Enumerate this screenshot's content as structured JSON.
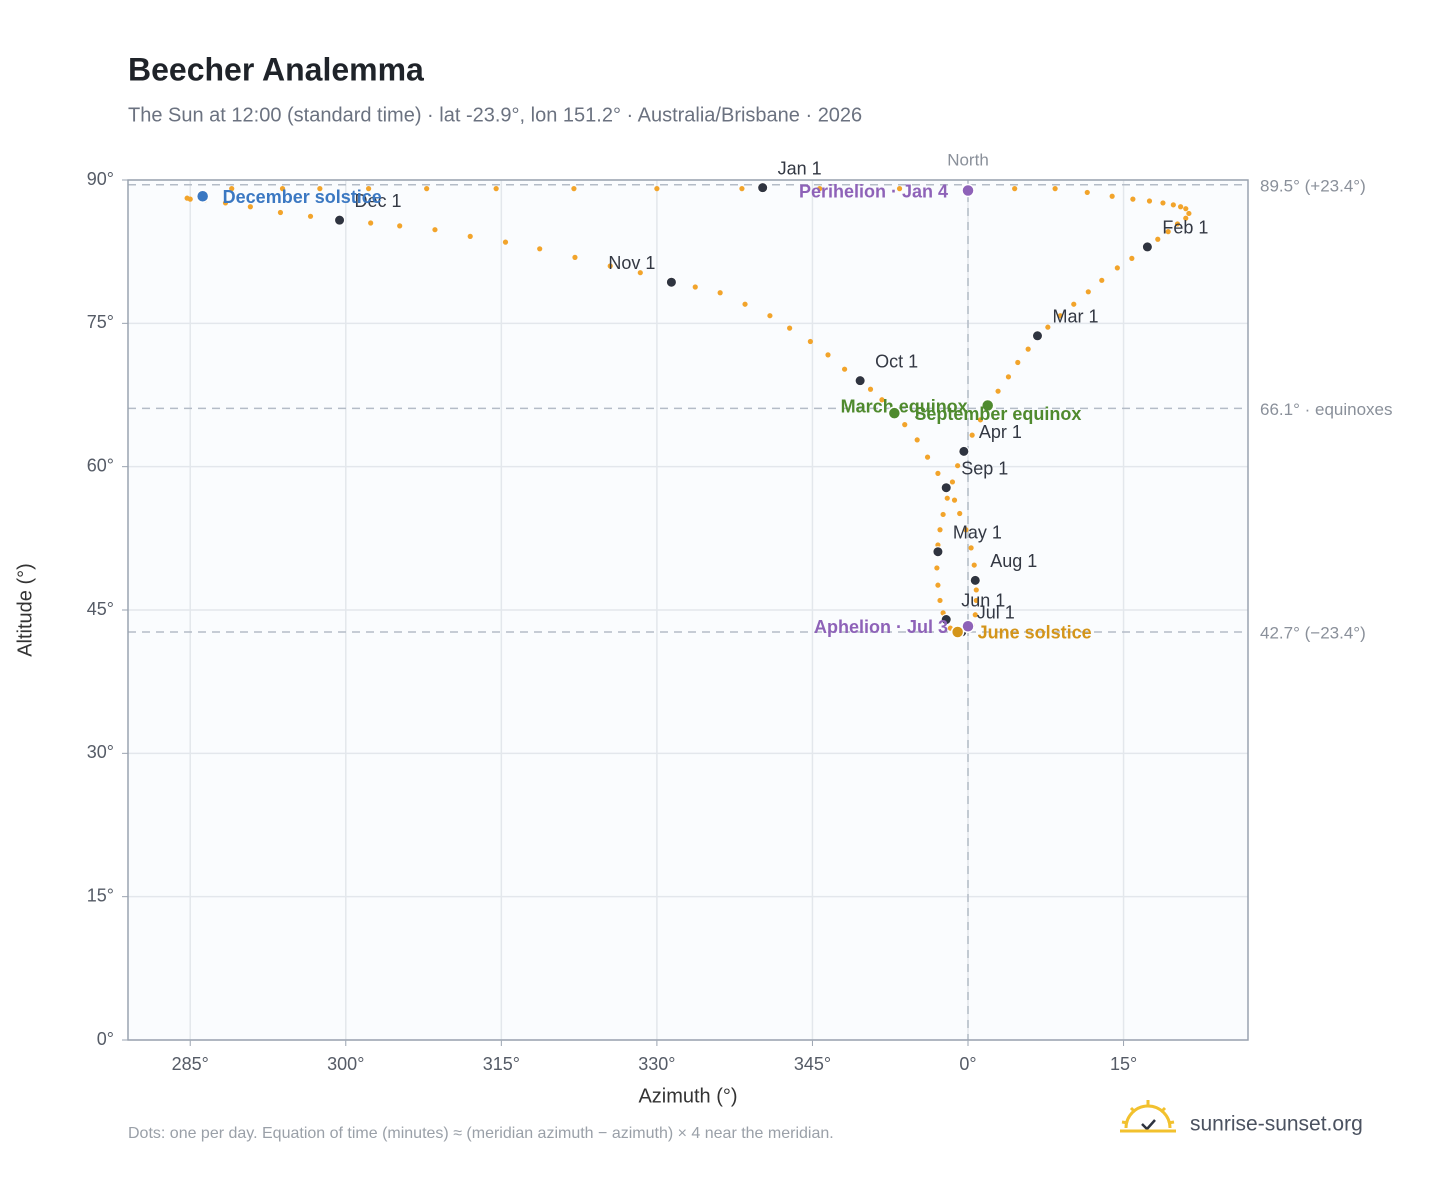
{
  "chart_data": {
    "type": "scatter",
    "title": "Beecher Analemma",
    "subtitle": "The Sun at 12:00 (standard time) · lat -23.9°, lon 151.2° · Australia/Brisbane · 2026",
    "x_label": "Azimuth (°)",
    "y_label": "Altitude (°)",
    "footnote": "Dots: one per day. Equation of time (minutes) ≈ (meridian azimuth − azimuth) × 4 near the meridian.",
    "brand": "sunrise-sunset.org",
    "xlim": [
      -81,
      27
    ],
    "ylim": [
      0,
      90
    ],
    "xticks": [
      {
        "value": -75,
        "label": "285°"
      },
      {
        "value": -60,
        "label": "300°"
      },
      {
        "value": -45,
        "label": "315°"
      },
      {
        "value": -30,
        "label": "330°"
      },
      {
        "value": -15,
        "label": "345°"
      },
      {
        "value": 0,
        "label": "0°"
      },
      {
        "value": 15,
        "label": "15°"
      }
    ],
    "yticks": [
      {
        "value": 0,
        "label": "0°"
      },
      {
        "value": 15,
        "label": "15°"
      },
      {
        "value": 30,
        "label": "30°"
      },
      {
        "value": 45,
        "label": "45°"
      },
      {
        "value": 60,
        "label": "60°"
      },
      {
        "value": 75,
        "label": "75°"
      },
      {
        "value": 90,
        "label": "90°"
      }
    ],
    "grid": true,
    "reference_lines": [
      {
        "value": 89.5,
        "label": "89.5° (+23.4°)"
      },
      {
        "value": 66.1,
        "label": "66.1° · equinoxes"
      },
      {
        "value": 42.7,
        "label": "42.7° (−23.4°)"
      }
    ],
    "vertical_line": {
      "value": 0,
      "label": "North"
    },
    "series": [
      {
        "color": "#f2a42b",
        "x": [
          -75.3,
          -71.0,
          -66.1,
          -62.5,
          -57.8,
          -52.2,
          -45.5,
          -38.0,
          -30.0,
          -21.8,
          -14.3,
          -6.6,
          4.5,
          8.4,
          11.5,
          13.9,
          15.9,
          17.5,
          18.8,
          19.8,
          20.5,
          21.0,
          21.3,
          21.0,
          20.2,
          19.3,
          18.3,
          15.8,
          14.4,
          12.9,
          11.6,
          10.2,
          8.9,
          7.7,
          6.7,
          5.8,
          4.8,
          3.9,
          2.9,
          1.9,
          1.2,
          0.4,
          -0.4,
          -1.0,
          -1.5,
          -2.0,
          -2.4,
          -2.7,
          -2.9,
          -2.9,
          -3.0,
          -2.9,
          -2.7,
          -2.4,
          -2.1,
          -1.7,
          -1.3,
          -1.0,
          -0.5,
          0,
          0.4,
          0.7,
          0.8,
          0.8,
          0.7,
          0.6,
          0.3,
          -0.2,
          -0.8,
          -1.3,
          -2.1,
          -2.9,
          -3.9,
          -4.9,
          -6.1,
          -7.1,
          -8.3,
          -9.4,
          -10.4,
          -11.9,
          -13.5,
          -15.2,
          -17.2,
          -19.1,
          -21.5,
          -23.9,
          -26.3,
          -28.6,
          -31.6,
          -34.5,
          -37.9,
          -41.3,
          -44.6,
          -48.0,
          -51.4,
          -54.8,
          -57.6,
          -60.6,
          -63.4,
          -66.3,
          -69.2,
          -71.6,
          -73.6,
          -75.0
        ],
        "values": [
          88.1,
          89.1,
          89.1,
          89.1,
          89.1,
          89.1,
          89.1,
          89.1,
          89.1,
          89.1,
          89.1,
          89.1,
          89.1,
          89.1,
          88.7,
          88.3,
          88.0,
          87.8,
          87.6,
          87.4,
          87.2,
          87.0,
          86.5,
          86.0,
          85.4,
          84.6,
          83.8,
          81.8,
          80.8,
          79.5,
          78.3,
          77.0,
          75.8,
          74.6,
          73.7,
          72.3,
          70.9,
          69.4,
          67.9,
          66.4,
          64.9,
          63.3,
          61.6,
          60.1,
          58.4,
          56.7,
          55.0,
          53.4,
          51.8,
          51.1,
          49.4,
          47.6,
          46.0,
          44.7,
          44.0,
          43.1,
          42.7,
          42.7,
          42.7,
          42.9,
          43.4,
          44.5,
          46.0,
          47.1,
          48.1,
          49.7,
          51.5,
          53.4,
          55.1,
          56.5,
          57.8,
          59.3,
          61.0,
          62.8,
          64.4,
          65.6,
          67.0,
          68.1,
          69.0,
          70.2,
          71.7,
          73.1,
          74.5,
          75.8,
          77.0,
          78.2,
          78.8,
          79.3,
          80.3,
          81.0,
          81.9,
          82.8,
          83.5,
          84.1,
          84.8,
          85.2,
          85.5,
          85.8,
          86.2,
          86.6,
          87.2,
          87.6,
          87.9,
          88.0
        ]
      }
    ],
    "month_markers": {
      "color": "#2f3440",
      "labels": [
        "Jan 1",
        "Feb 1",
        "Mar 1",
        "Apr 1",
        "May 1",
        "Jun 1",
        "Jul 1",
        "Aug 1",
        "Sep 1",
        "Oct 1",
        "Nov 1",
        "Dec 1"
      ],
      "x": [
        -19.8,
        17.3,
        6.7,
        -0.4,
        -2.9,
        -2.1,
        -0.6,
        0.7,
        -2.1,
        -10.4,
        -28.6,
        -60.6
      ],
      "values": [
        89.2,
        83.0,
        73.7,
        61.6,
        51.1,
        44.0,
        42.7,
        48.1,
        57.8,
        69.0,
        79.3,
        85.8
      ]
    },
    "events": [
      {
        "label": "December solstice",
        "x": -73.8,
        "y": 88.3,
        "color": "#3b78c2"
      },
      {
        "label": "Perihelion · Jan 4",
        "x": 0,
        "y": 88.9,
        "color": "#8e62b8"
      },
      {
        "label": "March equinox",
        "x": 1.9,
        "y": 66.4,
        "color": "#4f8a2e"
      },
      {
        "label": "September equinox",
        "x": -7.1,
        "y": 65.6,
        "color": "#4f8a2e"
      },
      {
        "label": "Aphelion · Jul 3",
        "x": 0,
        "y": 43.3,
        "color": "#8e62b8"
      },
      {
        "label": "June solstice",
        "x": -1.0,
        "y": 42.7,
        "color": "#d4951a"
      }
    ]
  }
}
